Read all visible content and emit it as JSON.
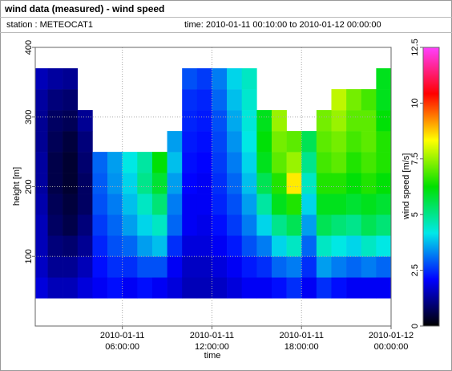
{
  "chart_data": {
    "type": "heatmap",
    "title": "wind data (measured) - wind speed",
    "station": "station : METEOCAT1",
    "period": "time: 2010-01-11 00:10:00 to 2010-01-12 00:00:00",
    "x_label": "time",
    "y_label": "height [m]",
    "colorbar_label": "wind speed [m/s]",
    "x_bins": [
      "2010-01-11 00:10:00",
      "2010-01-11 01:00:00",
      "2010-01-11 02:00:00",
      "2010-01-11 03:00:00",
      "2010-01-11 04:00:00",
      "2010-01-11 05:00:00",
      "2010-01-11 06:00:00",
      "2010-01-11 07:00:00",
      "2010-01-11 08:00:00",
      "2010-01-11 09:00:00",
      "2010-01-11 10:00:00",
      "2010-01-11 11:00:00",
      "2010-01-11 12:00:00",
      "2010-01-11 13:00:00",
      "2010-01-11 14:00:00",
      "2010-01-11 15:00:00",
      "2010-01-11 16:00:00",
      "2010-01-11 17:00:00",
      "2010-01-11 18:00:00",
      "2010-01-11 19:00:00",
      "2010-01-11 20:00:00",
      "2010-01-11 21:00:00",
      "2010-01-11 22:00:00",
      "2010-01-11 23:00:00",
      "2010-01-12 00:00:00"
    ],
    "y_bins": [
      40,
      70,
      100,
      130,
      160,
      190,
      220,
      250,
      280,
      310,
      340,
      370
    ],
    "values": [
      [
        1.8,
        1.6,
        1.5,
        1.5,
        1.4,
        1.3,
        1.3,
        1.2,
        1.2,
        1.3,
        1.5
      ],
      [
        1.5,
        1.2,
        1.0,
        0.8,
        0.7,
        0.6,
        0.6,
        0.7,
        0.8,
        1.0,
        1.3
      ],
      [
        1.5,
        1.2,
        0.9,
        0.6,
        0.5,
        0.4,
        0.4,
        0.5,
        0.7,
        0.9,
        1.2
      ],
      [
        1.8,
        1.5,
        1.2,
        1.0,
        0.8,
        0.8,
        0.9,
        1.0,
        1.2,
        null,
        null
      ],
      [
        2.0,
        2.2,
        2.4,
        2.6,
        2.8,
        2.9,
        3.0,
        null,
        null,
        null,
        null
      ],
      [
        2.2,
        2.5,
        2.8,
        3.0,
        3.2,
        3.4,
        3.5,
        null,
        null,
        null,
        null
      ],
      [
        2.0,
        2.5,
        3.0,
        3.5,
        3.8,
        4.0,
        4.2,
        null,
        null,
        null,
        null
      ],
      [
        2.2,
        2.8,
        3.5,
        4.0,
        4.5,
        5.0,
        4.8,
        null,
        null,
        null,
        null
      ],
      [
        2.0,
        2.8,
        3.8,
        4.5,
        5.2,
        5.8,
        6.2,
        null,
        null,
        null,
        null
      ],
      [
        1.8,
        2.0,
        2.5,
        3.0,
        3.2,
        3.5,
        3.8,
        3.5,
        null,
        null,
        null
      ],
      [
        1.5,
        1.6,
        1.8,
        2.0,
        2.0,
        2.1,
        2.2,
        2.3,
        2.4,
        2.5,
        2.8
      ],
      [
        1.5,
        1.6,
        1.8,
        1.9,
        2.0,
        2.0,
        2.1,
        2.2,
        2.3,
        2.4,
        2.6
      ],
      [
        1.6,
        1.8,
        2.0,
        2.2,
        2.4,
        2.5,
        2.6,
        2.7,
        2.8,
        3.0,
        3.2
      ],
      [
        1.8,
        2.0,
        2.3,
        2.6,
        2.8,
        3.0,
        3.2,
        3.4,
        3.6,
        3.8,
        4.0
      ],
      [
        2.0,
        2.3,
        2.8,
        3.2,
        3.5,
        3.8,
        4.0,
        4.2,
        4.3,
        4.4,
        4.5
      ],
      [
        2.0,
        2.5,
        3.2,
        4.0,
        4.8,
        5.5,
        6.0,
        6.2,
        6.0,
        null,
        null
      ],
      [
        2.2,
        3.0,
        4.0,
        5.0,
        6.0,
        6.5,
        7.0,
        7.2,
        7.5,
        null,
        null
      ],
      [
        2.5,
        3.2,
        4.5,
        5.5,
        6.5,
        8.5,
        7.5,
        7.0,
        null,
        null,
        null
      ],
      [
        2.0,
        2.5,
        3.0,
        3.5,
        4.0,
        4.5,
        5.0,
        5.5,
        null,
        null,
        null
      ],
      [
        2.5,
        3.5,
        4.5,
        5.5,
        6.0,
        6.5,
        6.8,
        7.0,
        7.2,
        null,
        null
      ],
      [
        2.2,
        3.2,
        4.2,
        5.2,
        6.0,
        6.5,
        7.0,
        7.2,
        7.5,
        7.8,
        null
      ],
      [
        2.0,
        3.0,
        4.0,
        5.0,
        5.8,
        6.2,
        6.5,
        6.8,
        7.0,
        7.2,
        null
      ],
      [
        2.0,
        3.2,
        4.5,
        5.5,
        6.0,
        6.5,
        6.8,
        7.0,
        7.0,
        6.8,
        null
      ],
      [
        2.0,
        3.0,
        4.2,
        5.2,
        5.8,
        6.2,
        6.5,
        6.5,
        6.2,
        6.0,
        6.0
      ]
    ],
    "xlim": [
      "2010-01-11 00:10:00",
      "2010-01-12 00:00:00"
    ],
    "xticks": [
      "2010-01-11 06:00:00",
      "2010-01-11 12:00:00",
      "2010-01-11 18:00:00",
      "2010-01-12 00:00:00"
    ],
    "ylim": [
      0,
      400
    ],
    "yticks": [
      100,
      200,
      300,
      400
    ],
    "clim": [
      0,
      12.5
    ],
    "cticks": [
      0,
      2.5,
      5,
      7.5,
      10,
      12.5
    ],
    "colormap": [
      "#000000",
      "#0000ff",
      "#00e8e8",
      "#00e000",
      "#ffff00",
      "#ff0000",
      "#ff40ff"
    ],
    "grid": true
  }
}
